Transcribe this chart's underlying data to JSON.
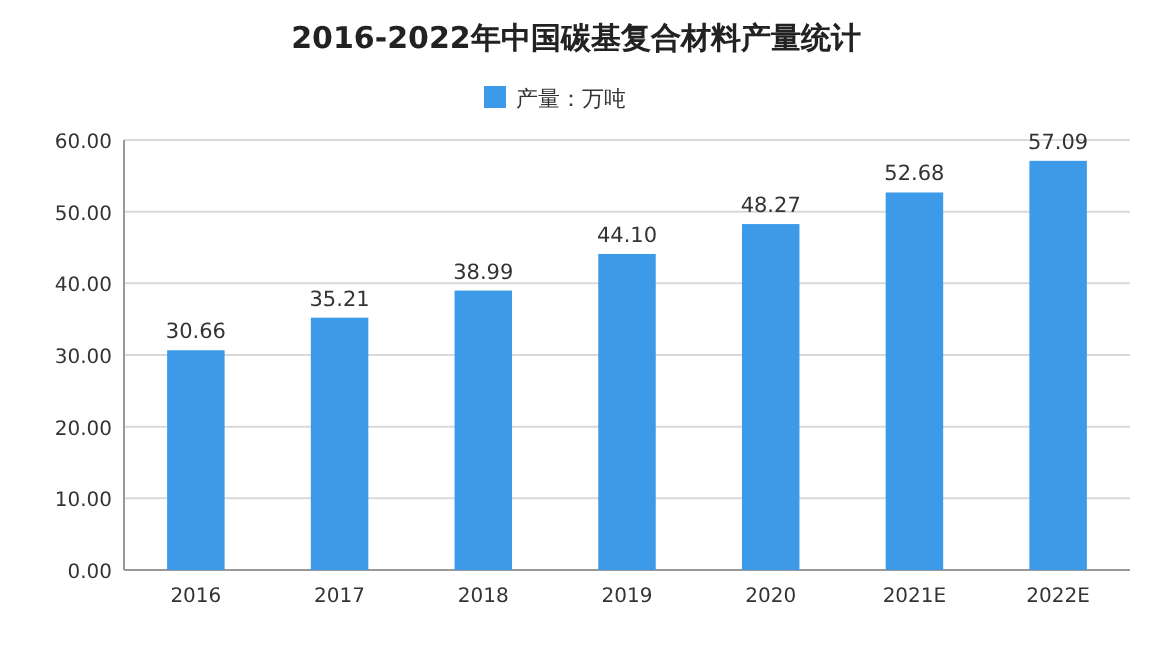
{
  "chart_data": {
    "type": "bar",
    "title": "2016-2022年中国碳基复合材料产量统计",
    "categories": [
      "2016",
      "2017",
      "2018",
      "2019",
      "2020",
      "2021E",
      "2022E"
    ],
    "series": [
      {
        "name": "产量：万吨",
        "color": "#3d9ae8",
        "values": [
          30.66,
          35.21,
          38.99,
          44.1,
          48.27,
          52.68,
          57.09
        ],
        "value_labels": [
          "30.66",
          "35.21",
          "38.99",
          "44.10",
          "48.27",
          "52.68",
          "57.09"
        ]
      }
    ],
    "ylim": [
      0,
      60
    ],
    "yticks": [
      {
        "value": 0,
        "label": "0.00"
      },
      {
        "value": 10,
        "label": "10.00"
      },
      {
        "value": 20,
        "label": "20.00"
      },
      {
        "value": 30,
        "label": "30.00"
      },
      {
        "value": 40,
        "label": "40.00"
      },
      {
        "value": 50,
        "label": "50.00"
      },
      {
        "value": 60,
        "label": "60.00"
      }
    ],
    "grid": "y",
    "legend": "top"
  }
}
